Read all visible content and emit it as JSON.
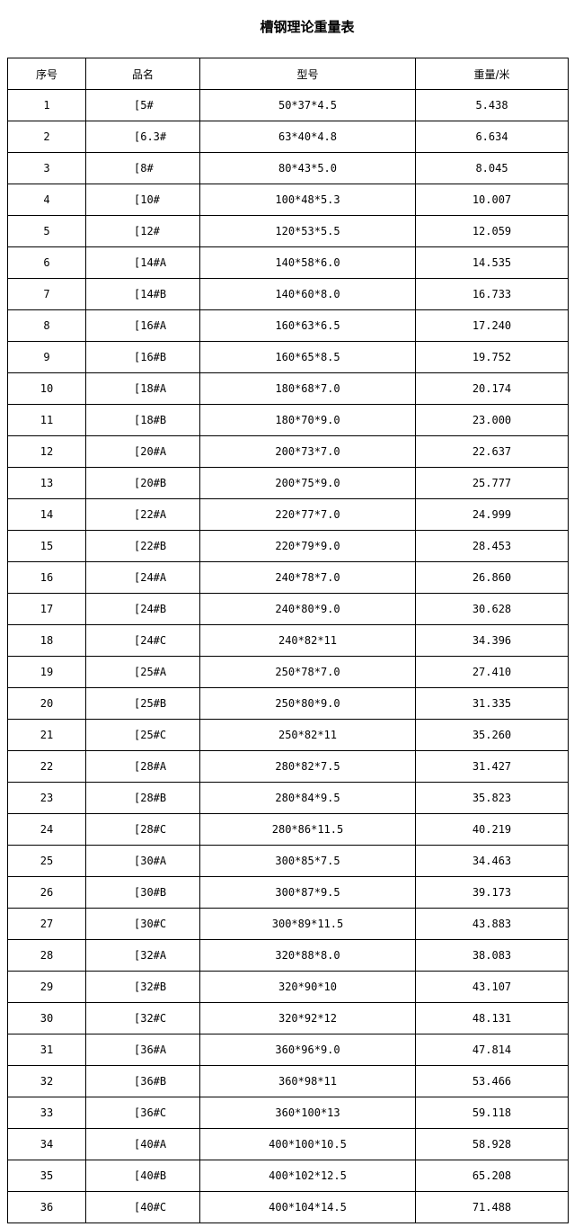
{
  "title": "槽钢理论重量表",
  "columns": [
    "序号",
    "品名",
    "型号",
    "重量/米"
  ],
  "rows": [
    [
      "1",
      "[5#",
      "50*37*4.5",
      "5.438"
    ],
    [
      "2",
      "[6.3#",
      "63*40*4.8",
      "6.634"
    ],
    [
      "3",
      "[8#",
      "80*43*5.0",
      "8.045"
    ],
    [
      "4",
      "[10#",
      "100*48*5.3",
      "10.007"
    ],
    [
      "5",
      "[12#",
      "120*53*5.5",
      "12.059"
    ],
    [
      "6",
      "[14#A",
      "140*58*6.0",
      "14.535"
    ],
    [
      "7",
      "[14#B",
      "140*60*8.0",
      "16.733"
    ],
    [
      "8",
      "[16#A",
      "160*63*6.5",
      "17.240"
    ],
    [
      "9",
      "[16#B",
      "160*65*8.5",
      "19.752"
    ],
    [
      "10",
      "[18#A",
      "180*68*7.0",
      "20.174"
    ],
    [
      "11",
      "[18#B",
      "180*70*9.0",
      "23.000"
    ],
    [
      "12",
      "[20#A",
      "200*73*7.0",
      "22.637"
    ],
    [
      "13",
      "[20#B",
      "200*75*9.0",
      "25.777"
    ],
    [
      "14",
      "[22#A",
      "220*77*7.0",
      "24.999"
    ],
    [
      "15",
      "[22#B",
      "220*79*9.0",
      "28.453"
    ],
    [
      "16",
      "[24#A",
      "240*78*7.0",
      "26.860"
    ],
    [
      "17",
      "[24#B",
      "240*80*9.0",
      "30.628"
    ],
    [
      "18",
      "[24#C",
      "240*82*11",
      "34.396"
    ],
    [
      "19",
      "[25#A",
      "250*78*7.0",
      "27.410"
    ],
    [
      "20",
      "[25#B",
      "250*80*9.0",
      "31.335"
    ],
    [
      "21",
      "[25#C",
      "250*82*11",
      "35.260"
    ],
    [
      "22",
      "[28#A",
      "280*82*7.5",
      "31.427"
    ],
    [
      "23",
      "[28#B",
      "280*84*9.5",
      "35.823"
    ],
    [
      "24",
      "[28#C",
      "280*86*11.5",
      "40.219"
    ],
    [
      "25",
      "[30#A",
      "300*85*7.5",
      "34.463"
    ],
    [
      "26",
      "[30#B",
      "300*87*9.5",
      "39.173"
    ],
    [
      "27",
      "[30#C",
      "300*89*11.5",
      "43.883"
    ],
    [
      "28",
      "[32#A",
      "320*88*8.0",
      "38.083"
    ],
    [
      "29",
      "[32#B",
      "320*90*10",
      "43.107"
    ],
    [
      "30",
      "[32#C",
      "320*92*12",
      "48.131"
    ],
    [
      "31",
      "[36#A",
      "360*96*9.0",
      "47.814"
    ],
    [
      "32",
      "[36#B",
      "360*98*11",
      "53.466"
    ],
    [
      "33",
      "[36#C",
      "360*100*13",
      "59.118"
    ],
    [
      "34",
      "[40#A",
      "400*100*10.5",
      "58.928"
    ],
    [
      "35",
      "[40#B",
      "400*102*12.5",
      "65.208"
    ],
    [
      "36",
      "[40#C",
      "400*104*14.5",
      "71.488"
    ]
  ]
}
